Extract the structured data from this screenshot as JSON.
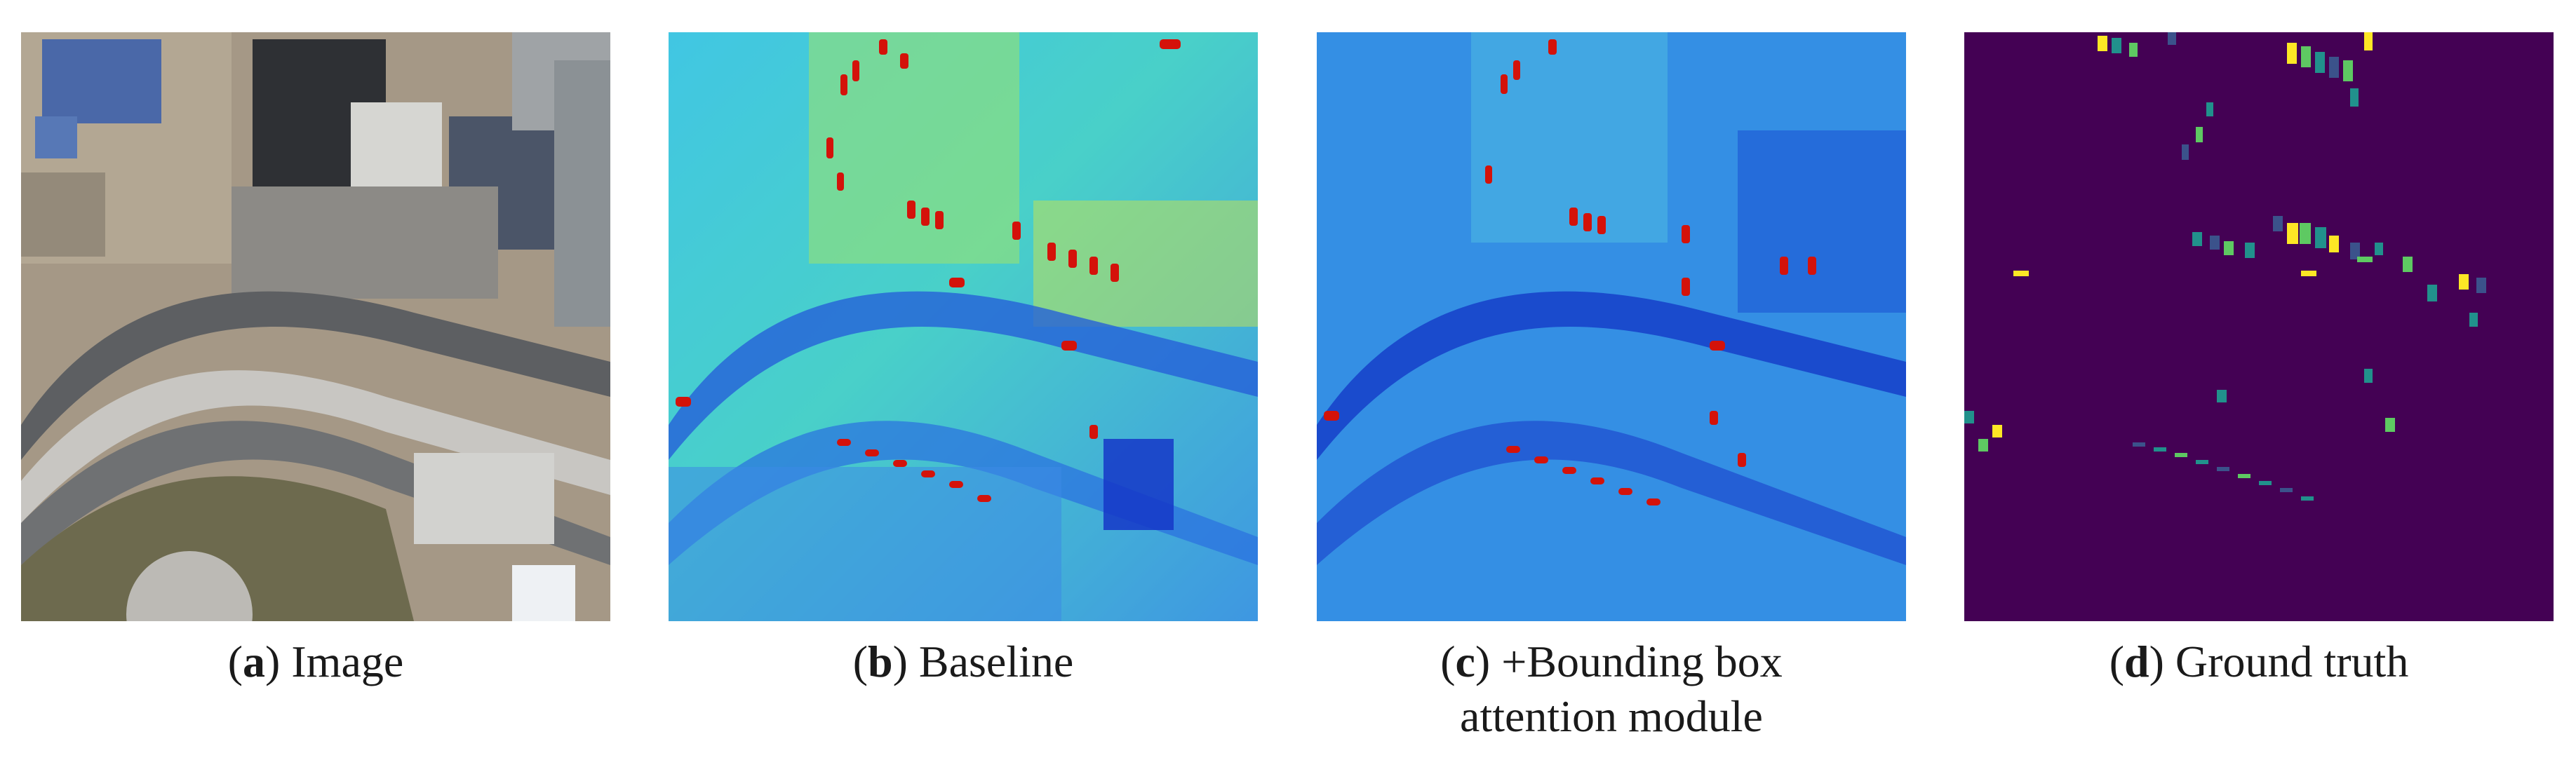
{
  "panels": [
    {
      "letter": "a",
      "caption": "Image",
      "colormap": "satellite-rgb"
    },
    {
      "letter": "b",
      "caption": "Baseline",
      "colormap": "jet"
    },
    {
      "letter": "c",
      "caption_line1": "+Bounding box",
      "caption_line2": "attention module",
      "colormap": "jet"
    },
    {
      "letter": "d",
      "caption": "Ground truth",
      "colormap": "viridis"
    }
  ],
  "colors": {
    "viridis_background": "#440154",
    "jet_low": "#0a2bd6",
    "jet_mid": "#39c6e6",
    "jet_high": "#d4120a",
    "satellite_ground": "#a89a86",
    "satellite_road": "#5d5f62"
  }
}
